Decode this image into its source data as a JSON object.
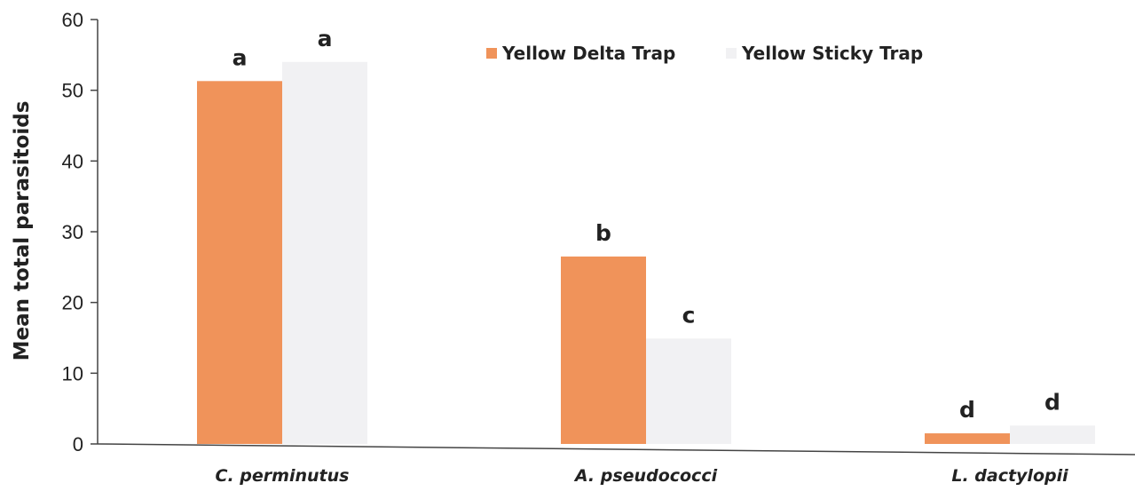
{
  "chart_data": {
    "type": "bar",
    "title": "",
    "xlabel": "",
    "ylabel": "Mean total parasitoids",
    "ylim": [
      0,
      60
    ],
    "yticks": [
      0,
      10,
      20,
      30,
      40,
      50,
      60
    ],
    "categories": [
      "C. perminutus",
      "A. pseudococci",
      "L. dactylopii"
    ],
    "series": [
      {
        "name": "Yellow Delta Trap",
        "color": "#f0935a",
        "values": [
          51.3,
          26.5,
          1.5
        ],
        "letters": [
          "a",
          "b",
          "d"
        ]
      },
      {
        "name": "Yellow Sticky Trap",
        "color": "#f1f1f3",
        "values": [
          54.0,
          14.9,
          2.6
        ],
        "letters": [
          "a",
          "c",
          "d"
        ]
      }
    ],
    "grid": false,
    "legend": "top-right"
  }
}
